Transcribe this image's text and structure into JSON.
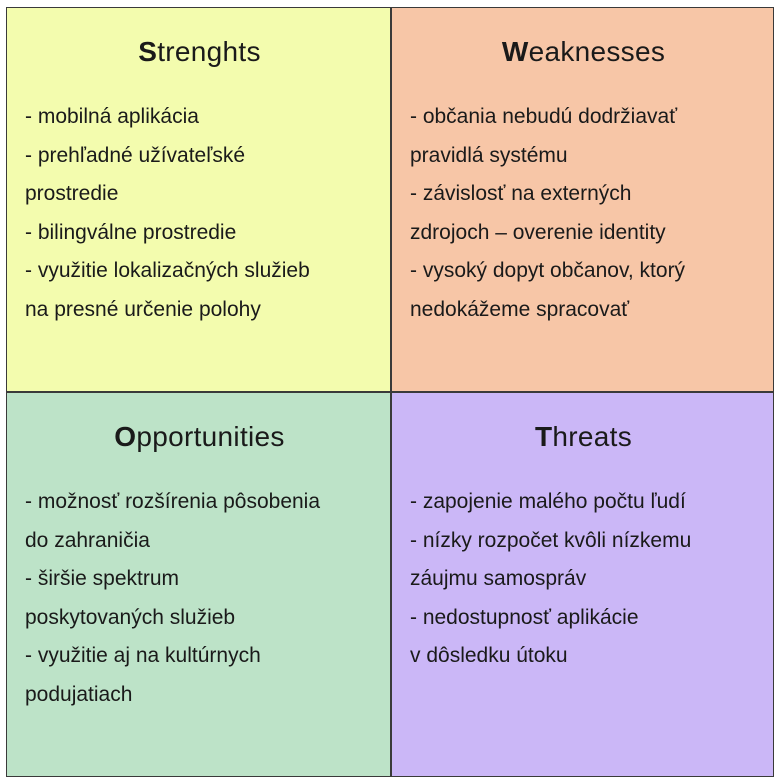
{
  "colors": {
    "strengths_bg": "#f3fcae",
    "weaknesses_bg": "#f7c6a7",
    "opportunities_bg": "#bde3c8",
    "threats_bg": "#cbb7f7",
    "border": "#3a3a3a"
  },
  "quadrants": [
    {
      "key": "strengths",
      "initial": "S",
      "rest": "trenghts",
      "items": [
        "- mobilná aplikácia",
        "- prehľadné užívateľské\nprostredie",
        "- bilingválne prostredie",
        "- využitie lokalizačných služieb\nna presné určenie polohy"
      ]
    },
    {
      "key": "weaknesses",
      "initial": "W",
      "rest": "eaknesses",
      "items": [
        "- občania nebudú dodržiavať\npravidlá systému",
        "- závislosť na externých\nzdrojoch – overenie identity",
        "- vysoký dopyt občanov, ktorý\nnedokážeme spracovať"
      ]
    },
    {
      "key": "opportunities",
      "initial": "O",
      "rest": "pportunities",
      "items": [
        "- možnosť rozšírenia pôsobenia\ndo zahraničia",
        "- širšie spektrum\nposkytovaných služieb",
        "- využitie aj na kultúrnych\npodujatiach"
      ]
    },
    {
      "key": "threats",
      "initial": "T",
      "rest": "hreats",
      "items": [
        "- zapojenie malého počtu ľudí",
        "- nízky rozpočet kvôli nízkemu\nzáujmu samospráv",
        "- nedostupnosť aplikácie\nv dôsledku útoku"
      ]
    }
  ]
}
